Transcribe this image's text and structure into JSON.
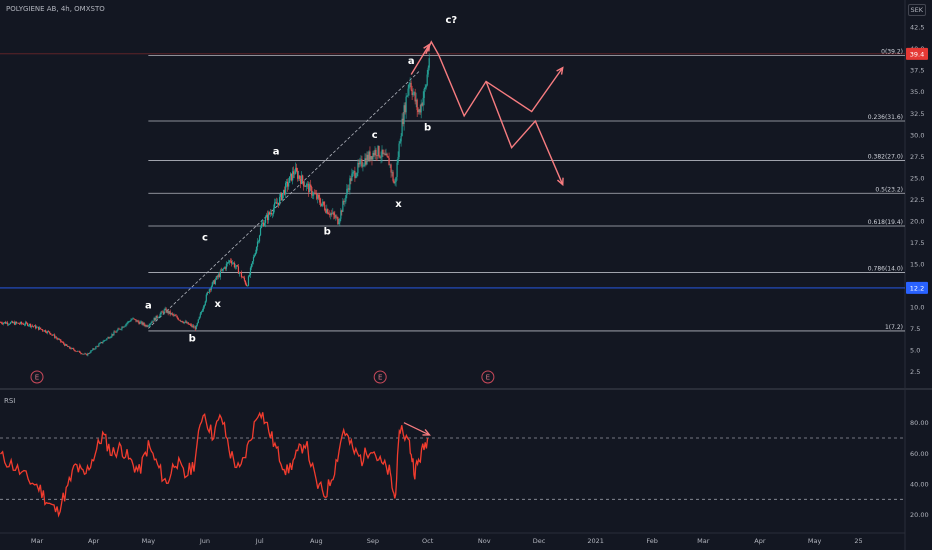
{
  "header": {
    "symbol_line": "POLYGIENE AB, 4h, OMXSTO",
    "currency": "SEK"
  },
  "rsi_label": "RSI",
  "colors": {
    "background": "#131722",
    "candle_up": "#26a69a",
    "candle_down": "#ef5350",
    "rsi_line": "#f23c2e",
    "projection": "#f77c80",
    "fib_line": "#d1d4dc",
    "current_line": "#2962ff",
    "price_badge": "#e53935",
    "current_badge": "#2962ff"
  },
  "chart_data": {
    "type": "candlestick",
    "ylim": [
      1.5,
      44.5
    ],
    "y_ticks": [
      "42.5",
      "40.0",
      "37.5",
      "35.0",
      "32.5",
      "30.0",
      "27.5",
      "25.0",
      "22.5",
      "20.0",
      "17.5",
      "15.0",
      "12.5",
      "10.0",
      "7.5",
      "5.0",
      "2.5"
    ],
    "y_tick_values": [
      42.5,
      40.0,
      37.5,
      35.0,
      32.5,
      30.0,
      27.5,
      25.0,
      22.5,
      20.0,
      17.5,
      15.0,
      12.5,
      10.0,
      7.5,
      5.0,
      2.5
    ],
    "x_ticks": [
      "Mar",
      "Apr",
      "May",
      "Jun",
      "Jul",
      "Aug",
      "Sep",
      "Oct",
      "Nov",
      "Dec",
      "2021",
      "Feb",
      "Mar",
      "Apr",
      "May",
      "25"
    ],
    "x_tick_dates": [
      "2020-03-01",
      "2020-04-01",
      "2020-05-01",
      "2020-06-01",
      "2020-07-01",
      "2020-08-01",
      "2020-09-01",
      "2020-10-01",
      "2020-11-01",
      "2020-12-01",
      "2021-01-01",
      "2021-02-01",
      "2021-03-01",
      "2021-04-01",
      "2021-05-01",
      "2021-05-25"
    ],
    "price_path": [
      [
        "2020-02-10",
        8.2
      ],
      [
        "2020-02-25",
        8.0
      ],
      [
        "2020-03-08",
        7.0
      ],
      [
        "2020-03-18",
        5.3
      ],
      [
        "2020-03-28",
        4.4
      ],
      [
        "2020-04-05",
        5.8
      ],
      [
        "2020-04-15",
        7.4
      ],
      [
        "2020-04-22",
        8.6
      ],
      [
        "2020-04-30",
        7.8
      ],
      [
        "2020-05-10",
        9.6
      ],
      [
        "2020-05-20",
        8.3
      ],
      [
        "2020-05-27",
        7.5
      ],
      [
        "2020-06-03",
        12.0
      ],
      [
        "2020-06-08",
        13.5
      ],
      [
        "2020-06-15",
        15.5
      ],
      [
        "2020-06-20",
        14.0
      ],
      [
        "2020-06-24",
        12.5
      ],
      [
        "2020-07-02",
        19.5
      ],
      [
        "2020-07-12",
        22.5
      ],
      [
        "2020-07-20",
        25.8
      ],
      [
        "2020-07-27",
        24.0
      ],
      [
        "2020-08-06",
        21.5
      ],
      [
        "2020-08-13",
        20.0
      ],
      [
        "2020-08-20",
        25.0
      ],
      [
        "2020-08-27",
        27.0
      ],
      [
        "2020-09-03",
        28.2
      ],
      [
        "2020-09-10",
        26.8
      ],
      [
        "2020-09-13",
        24.0
      ],
      [
        "2020-09-16",
        30.0
      ],
      [
        "2020-09-21",
        36.5
      ],
      [
        "2020-09-26",
        32.5
      ],
      [
        "2020-09-30",
        35.5
      ],
      [
        "2020-10-02",
        39.4
      ]
    ],
    "current_price": 39.4,
    "current_price_label": "39.4",
    "horizontal_level": 12.2,
    "horizontal_level_label": "12.2",
    "fib_levels": [
      {
        "ratio": "0",
        "value": 39.2,
        "label": "0(39.2)"
      },
      {
        "ratio": "0.236",
        "value": 31.6,
        "label": "0.236(31.6)"
      },
      {
        "ratio": "0.382",
        "value": 27.0,
        "label": "0.382(27.0)"
      },
      {
        "ratio": "0.5",
        "value": 23.2,
        "label": "0.5(23.2)"
      },
      {
        "ratio": "0.618",
        "value": 19.4,
        "label": "0.618(19.4)"
      },
      {
        "ratio": "0.786",
        "value": 14.0,
        "label": "0.786(14.0)"
      },
      {
        "ratio": "1",
        "value": 7.2,
        "label": "1(7.2)"
      }
    ],
    "fib_start_date": "2020-05-01",
    "wave_labels": [
      {
        "text": "a",
        "date": "2020-05-01",
        "price": 9.8
      },
      {
        "text": "b",
        "date": "2020-05-25",
        "price": 6.0
      },
      {
        "text": "x",
        "date": "2020-06-08",
        "price": 10.0
      },
      {
        "text": "c",
        "date": "2020-06-01",
        "price": 17.7
      },
      {
        "text": "a",
        "date": "2020-07-10",
        "price": 27.7
      },
      {
        "text": "b",
        "date": "2020-08-07",
        "price": 18.4
      },
      {
        "text": "c",
        "date": "2020-09-02",
        "price": 29.6
      },
      {
        "text": "x",
        "date": "2020-09-15",
        "price": 21.6
      },
      {
        "text": "a",
        "date": "2020-09-22",
        "price": 38.2
      },
      {
        "text": "b",
        "date": "2020-10-01",
        "price": 30.5
      },
      {
        "text": "c?",
        "date": "2020-10-14",
        "price": 43.0
      }
    ],
    "earnings_markers": [
      "2020-03-01",
      "2020-09-05",
      "2020-11-03"
    ],
    "earnings_text": "E",
    "projection_up": [
      [
        "2020-09-30",
        39.4
      ],
      [
        "2020-10-03",
        40.8
      ],
      [
        "2020-10-07",
        39.3
      ],
      [
        "2020-10-21",
        32.2
      ],
      [
        "2020-11-02",
        36.2
      ],
      [
        "2020-11-27",
        32.7
      ],
      [
        "2020-12-14",
        37.8
      ]
    ],
    "projection_down": [
      [
        "2020-11-02",
        36.2
      ],
      [
        "2020-11-16",
        28.5
      ],
      [
        "2020-11-29",
        31.6
      ],
      [
        "2020-12-14",
        24.2
      ]
    ],
    "trend_line": [
      [
        "2020-05-01",
        7.5
      ],
      [
        "2020-09-27",
        37.5
      ]
    ],
    "rsi": {
      "ylim": [
        10,
        100
      ],
      "y_ticks": [
        "80.00",
        "60.00",
        "40.00",
        "20.00"
      ],
      "y_tick_values": [
        80,
        60,
        40,
        20
      ],
      "upper_band": 70,
      "lower_band": 30,
      "path": [
        [
          "2020-02-10",
          58
        ],
        [
          "2020-02-17",
          52
        ],
        [
          "2020-02-24",
          44
        ],
        [
          "2020-03-02",
          38
        ],
        [
          "2020-03-07",
          28
        ],
        [
          "2020-03-12",
          22
        ],
        [
          "2020-03-17",
          35
        ],
        [
          "2020-03-22",
          52
        ],
        [
          "2020-03-27",
          45
        ],
        [
          "2020-04-01",
          58
        ],
        [
          "2020-04-06",
          72
        ],
        [
          "2020-04-11",
          60
        ],
        [
          "2020-04-16",
          64
        ],
        [
          "2020-04-21",
          55
        ],
        [
          "2020-04-26",
          48
        ],
        [
          "2020-05-01",
          65
        ],
        [
          "2020-05-06",
          52
        ],
        [
          "2020-05-11",
          40
        ],
        [
          "2020-05-16",
          56
        ],
        [
          "2020-05-21",
          45
        ],
        [
          "2020-05-26",
          53
        ],
        [
          "2020-05-31",
          88
        ],
        [
          "2020-06-05",
          72
        ],
        [
          "2020-06-10",
          84
        ],
        [
          "2020-06-15",
          60
        ],
        [
          "2020-06-20",
          48
        ],
        [
          "2020-06-25",
          66
        ],
        [
          "2020-07-01",
          90
        ],
        [
          "2020-07-06",
          75
        ],
        [
          "2020-07-11",
          60
        ],
        [
          "2020-07-16",
          48
        ],
        [
          "2020-07-21",
          58
        ],
        [
          "2020-07-26",
          68
        ],
        [
          "2020-08-01",
          40
        ],
        [
          "2020-08-06",
          33
        ],
        [
          "2020-08-11",
          50
        ],
        [
          "2020-08-16",
          76
        ],
        [
          "2020-08-21",
          62
        ],
        [
          "2020-08-26",
          56
        ],
        [
          "2020-08-31",
          65
        ],
        [
          "2020-09-05",
          54
        ],
        [
          "2020-09-10",
          48
        ],
        [
          "2020-09-13",
          30
        ],
        [
          "2020-09-16",
          78
        ],
        [
          "2020-09-21",
          66
        ],
        [
          "2020-09-24",
          48
        ],
        [
          "2020-09-27",
          58
        ],
        [
          "2020-10-01",
          70
        ]
      ],
      "divergence_line": [
        [
          "2020-09-18",
          80
        ],
        [
          "2020-10-02",
          72
        ]
      ]
    }
  }
}
